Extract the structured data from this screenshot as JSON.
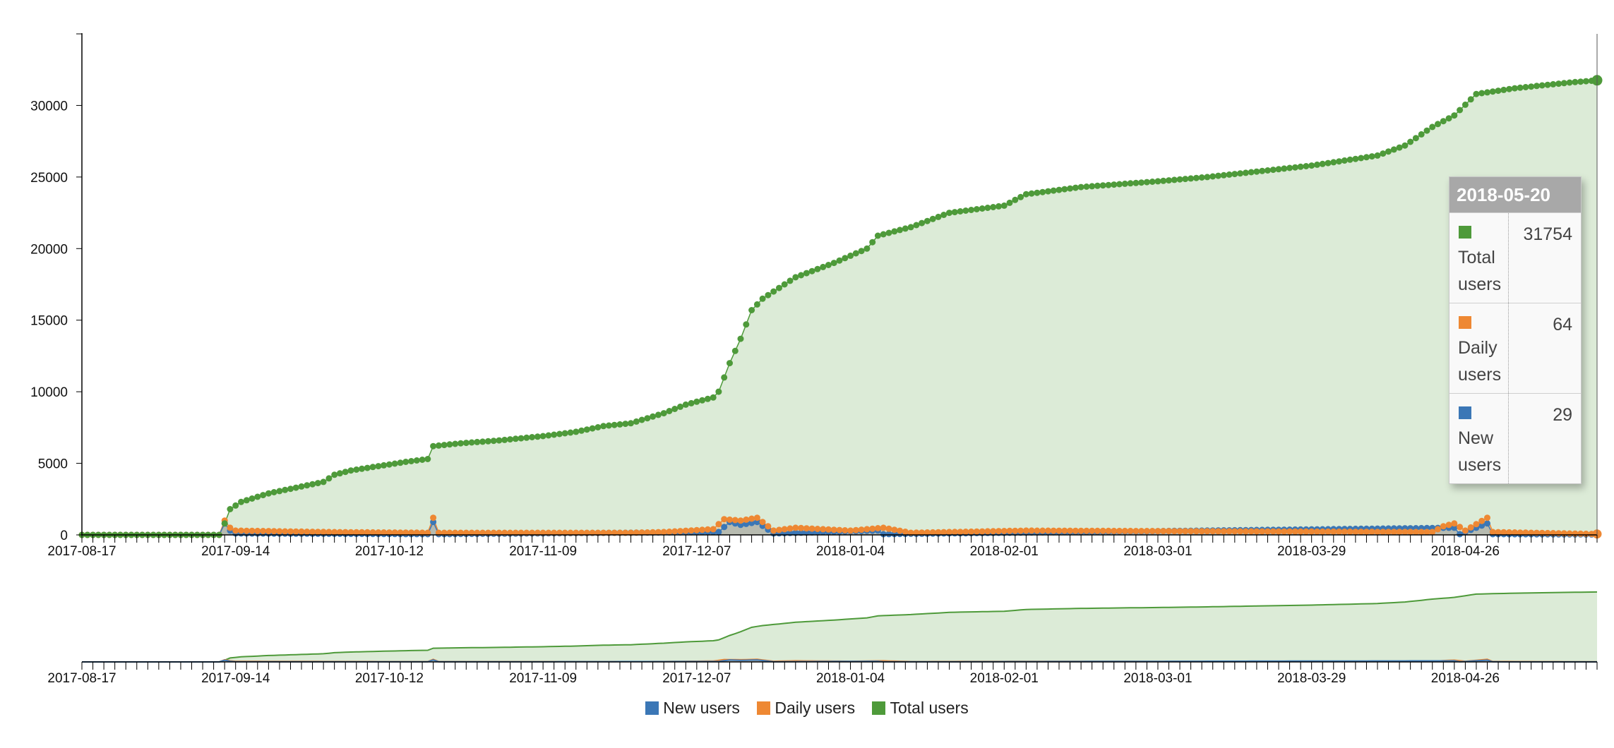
{
  "colors": {
    "new_users": "#3b77b6",
    "daily_users": "#ee8833",
    "total_users": "#4e9a3a",
    "total_area": "#dcebd7"
  },
  "legend": [
    {
      "label": "New users",
      "color": "#3b77b6"
    },
    {
      "label": "Daily users",
      "color": "#ee8833"
    },
    {
      "label": "Total users",
      "color": "#4e9a3a"
    }
  ],
  "tooltip": {
    "date": "2018-05-20",
    "rows": [
      {
        "name": "Total users",
        "value": "31754",
        "color": "#4e9a3a"
      },
      {
        "name": "Daily users",
        "value": "64",
        "color": "#ee8833"
      },
      {
        "name": "New users",
        "value": "29",
        "color": "#3b77b6"
      }
    ]
  },
  "chart_data": {
    "type": "area",
    "x_type": "date",
    "x_range": [
      "2017-08-17",
      "2018-05-20"
    ],
    "ylim": [
      0,
      35000
    ],
    "y_ticks": [
      0,
      5000,
      10000,
      15000,
      20000,
      25000,
      30000
    ],
    "x_ticks": [
      "2017-08-17",
      "2017-09-14",
      "2017-10-12",
      "2017-11-09",
      "2017-12-07",
      "2018-01-04",
      "2018-02-01",
      "2018-03-01",
      "2018-03-29",
      "2018-04-26"
    ],
    "grid": false,
    "legend_position": "bottom",
    "has_subchart": true,
    "series": [
      {
        "name": "Total users",
        "points": [
          [
            "2017-08-17",
            0
          ],
          [
            "2017-09-11",
            0
          ],
          [
            "2017-09-12",
            800
          ],
          [
            "2017-09-13",
            1800
          ],
          [
            "2017-09-15",
            2300
          ],
          [
            "2017-09-20",
            2900
          ],
          [
            "2017-09-25",
            3300
          ],
          [
            "2017-09-30",
            3700
          ],
          [
            "2017-10-02",
            4200
          ],
          [
            "2017-10-05",
            4500
          ],
          [
            "2017-10-10",
            4800
          ],
          [
            "2017-10-15",
            5100
          ],
          [
            "2017-10-19",
            5300
          ],
          [
            "2017-10-20",
            6200
          ],
          [
            "2017-10-25",
            6400
          ],
          [
            "2017-11-01",
            6600
          ],
          [
            "2017-11-09",
            6900
          ],
          [
            "2017-11-15",
            7200
          ],
          [
            "2017-11-20",
            7600
          ],
          [
            "2017-11-25",
            7800
          ],
          [
            "2017-12-01",
            8500
          ],
          [
            "2017-12-05",
            9100
          ],
          [
            "2017-12-10",
            9600
          ],
          [
            "2017-12-11",
            10000
          ],
          [
            "2017-12-13",
            12000
          ],
          [
            "2017-12-15",
            13700
          ],
          [
            "2017-12-17",
            15700
          ],
          [
            "2017-12-19",
            16500
          ],
          [
            "2017-12-25",
            18000
          ],
          [
            "2018-01-01",
            19000
          ],
          [
            "2018-01-07",
            20000
          ],
          [
            "2018-01-09",
            20900
          ],
          [
            "2018-01-15",
            21500
          ],
          [
            "2018-01-22",
            22500
          ],
          [
            "2018-02-01",
            23000
          ],
          [
            "2018-02-05",
            23800
          ],
          [
            "2018-02-15",
            24300
          ],
          [
            "2018-03-01",
            24700
          ],
          [
            "2018-03-10",
            25000
          ],
          [
            "2018-03-29",
            25800
          ],
          [
            "2018-04-10",
            26500
          ],
          [
            "2018-04-15",
            27200
          ],
          [
            "2018-04-20",
            28500
          ],
          [
            "2018-04-24",
            29300
          ],
          [
            "2018-04-28",
            30800
          ],
          [
            "2018-05-05",
            31200
          ],
          [
            "2018-05-15",
            31600
          ],
          [
            "2018-05-20",
            31754
          ]
        ]
      },
      {
        "name": "Daily users",
        "points": [
          [
            "2017-08-17",
            0
          ],
          [
            "2017-09-11",
            0
          ],
          [
            "2017-09-12",
            1000
          ],
          [
            "2017-09-13",
            500
          ],
          [
            "2017-09-14",
            300
          ],
          [
            "2017-10-01",
            200
          ],
          [
            "2017-10-19",
            150
          ],
          [
            "2017-10-20",
            1200
          ],
          [
            "2017-10-21",
            150
          ],
          [
            "2017-11-25",
            150
          ],
          [
            "2017-12-01",
            200
          ],
          [
            "2017-12-10",
            400
          ],
          [
            "2017-12-12",
            1100
          ],
          [
            "2017-12-15",
            1000
          ],
          [
            "2017-12-18",
            1200
          ],
          [
            "2017-12-21",
            300
          ],
          [
            "2017-12-25",
            500
          ],
          [
            "2018-01-04",
            300
          ],
          [
            "2018-01-10",
            500
          ],
          [
            "2018-01-15",
            150
          ],
          [
            "2018-02-05",
            300
          ],
          [
            "2018-04-20",
            200
          ],
          [
            "2018-04-22",
            600
          ],
          [
            "2018-04-24",
            800
          ],
          [
            "2018-04-26",
            300
          ],
          [
            "2018-04-30",
            1200
          ],
          [
            "2018-05-01",
            200
          ],
          [
            "2018-05-20",
            64
          ]
        ]
      },
      {
        "name": "New users",
        "points": [
          [
            "2017-08-17",
            0
          ],
          [
            "2017-09-11",
            0
          ],
          [
            "2017-09-12",
            800
          ],
          [
            "2017-09-13",
            300
          ],
          [
            "2017-09-14",
            100
          ],
          [
            "2017-10-19",
            50
          ],
          [
            "2017-10-20",
            900
          ],
          [
            "2017-10-21",
            50
          ],
          [
            "2017-12-11",
            200
          ],
          [
            "2017-12-13",
            900
          ],
          [
            "2017-12-15",
            700
          ],
          [
            "2017-12-18",
            900
          ],
          [
            "2017-12-21",
            100
          ],
          [
            "2018-01-09",
            300
          ],
          [
            "2018-01-10",
            50
          ],
          [
            "2018-04-24",
            500
          ],
          [
            "2018-04-25",
            50
          ],
          [
            "2018-04-30",
            800
          ],
          [
            "2018-05-01",
            50
          ],
          [
            "2018-05-20",
            29
          ]
        ]
      }
    ]
  }
}
